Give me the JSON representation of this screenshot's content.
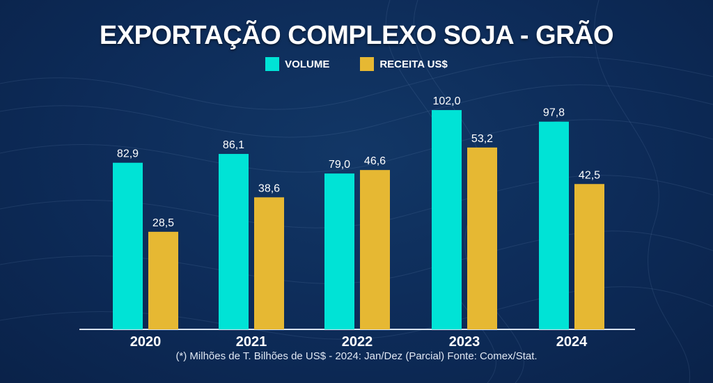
{
  "colors": {
    "volume": "#00e3d6",
    "receita": "#e6b833",
    "background": "#0d2a55"
  },
  "chart_data": {
    "type": "bar",
    "title": "EXPORTAÇÃO COMPLEXO SOJA - GRÃO",
    "categories": [
      "2020",
      "2021",
      "2022",
      "2023",
      "2024"
    ],
    "series": [
      {
        "name": "VOLUME",
        "values": [
          82.9,
          86.1,
          79.0,
          102.0,
          97.8
        ],
        "labels": [
          "82,9",
          "86,1",
          "79,0",
          "102,0",
          "97,8"
        ]
      },
      {
        "name": "RECEITA US$",
        "values": [
          28.5,
          38.6,
          46.6,
          53.2,
          42.5
        ],
        "labels": [
          "28,5",
          "38,6",
          "46,6",
          "53,2",
          "42,5"
        ]
      }
    ],
    "xlabel": "",
    "ylabel": "",
    "legend": "top-center",
    "grid": false,
    "footnote": "(*) Milhões de T. Bilhões de US$ - 2024: Jan/Dez (Parcial)  Fonte: Comex/Stat."
  }
}
